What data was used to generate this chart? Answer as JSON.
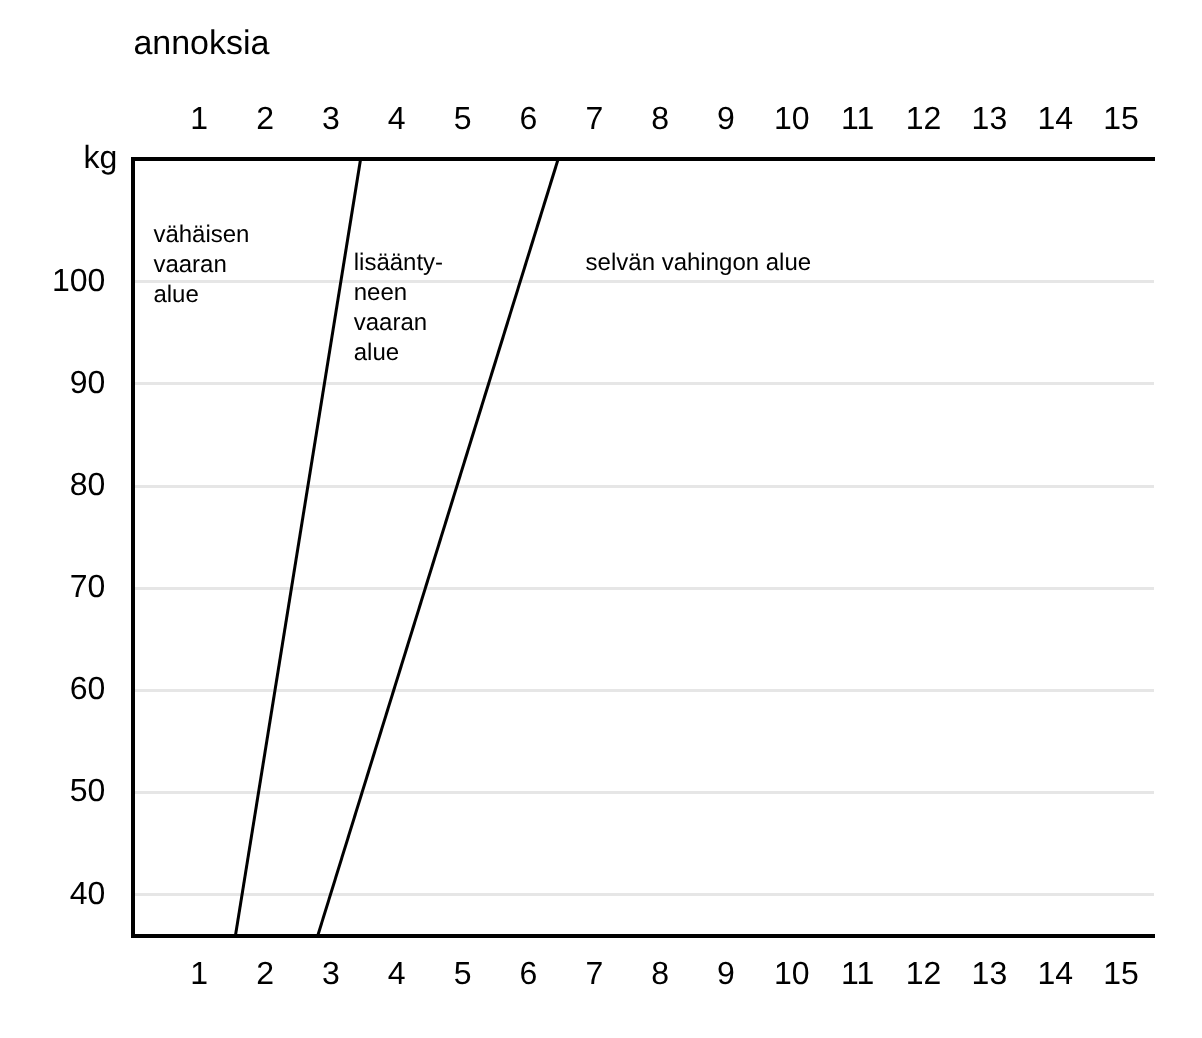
{
  "chart_data": {
    "type": "line",
    "x2label": "annoksia",
    "ylabel": "kg",
    "xlim": [
      0,
      15.5
    ],
    "xticks": [
      1,
      2,
      3,
      4,
      5,
      6,
      7,
      8,
      9,
      10,
      11,
      12,
      13,
      14,
      15
    ],
    "x2lim": [
      0,
      15.5
    ],
    "x2ticks": [
      1,
      2,
      3,
      4,
      5,
      6,
      7,
      8,
      9,
      10,
      11,
      12,
      13,
      14,
      15
    ],
    "ylim": [
      36,
      112
    ],
    "yticks": [
      40,
      50,
      60,
      70,
      80,
      90,
      100
    ],
    "grid": "y",
    "legend": false,
    "marker": "none",
    "line_style": "solid",
    "series": [
      {
        "color": "#000000",
        "x": [
          1.55,
          3.45
        ],
        "values": [
          36,
          112
        ]
      },
      {
        "color": "#000000",
        "x": [
          2.8,
          6.45
        ],
        "values": [
          36,
          112
        ]
      }
    ],
    "annotations": [
      "vähäisen\nvaaran\nalue",
      "lisäänty-\nneen\nvaaran\nalue",
      "selvän vahingon alue"
    ]
  }
}
